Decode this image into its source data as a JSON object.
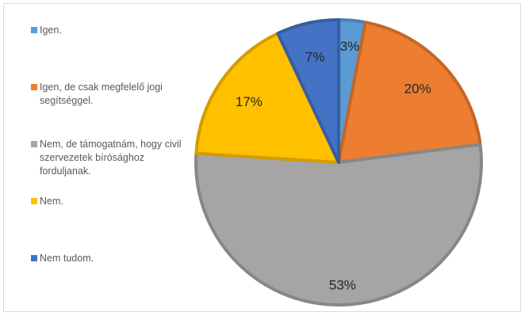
{
  "chart_data": {
    "type": "pie",
    "categories": [
      "Igen.",
      "Igen, de csak megfelelő jogi segítséggel.",
      "Nem, de támogatnám, hogy civil szervezetek bírósághoz forduljanak.",
      "Nem.",
      "Nem tudom."
    ],
    "values": [
      3,
      20,
      53,
      17,
      7
    ],
    "data_labels": [
      "3%",
      "20%",
      "53%",
      "17%",
      "7%"
    ],
    "colors": [
      "#5b9bd5",
      "#ed7d31",
      "#a5a5a5",
      "#ffc000",
      "#4472c4"
    ],
    "start_angle_deg": 0,
    "direction": "clockwise",
    "legend_position": "left"
  }
}
